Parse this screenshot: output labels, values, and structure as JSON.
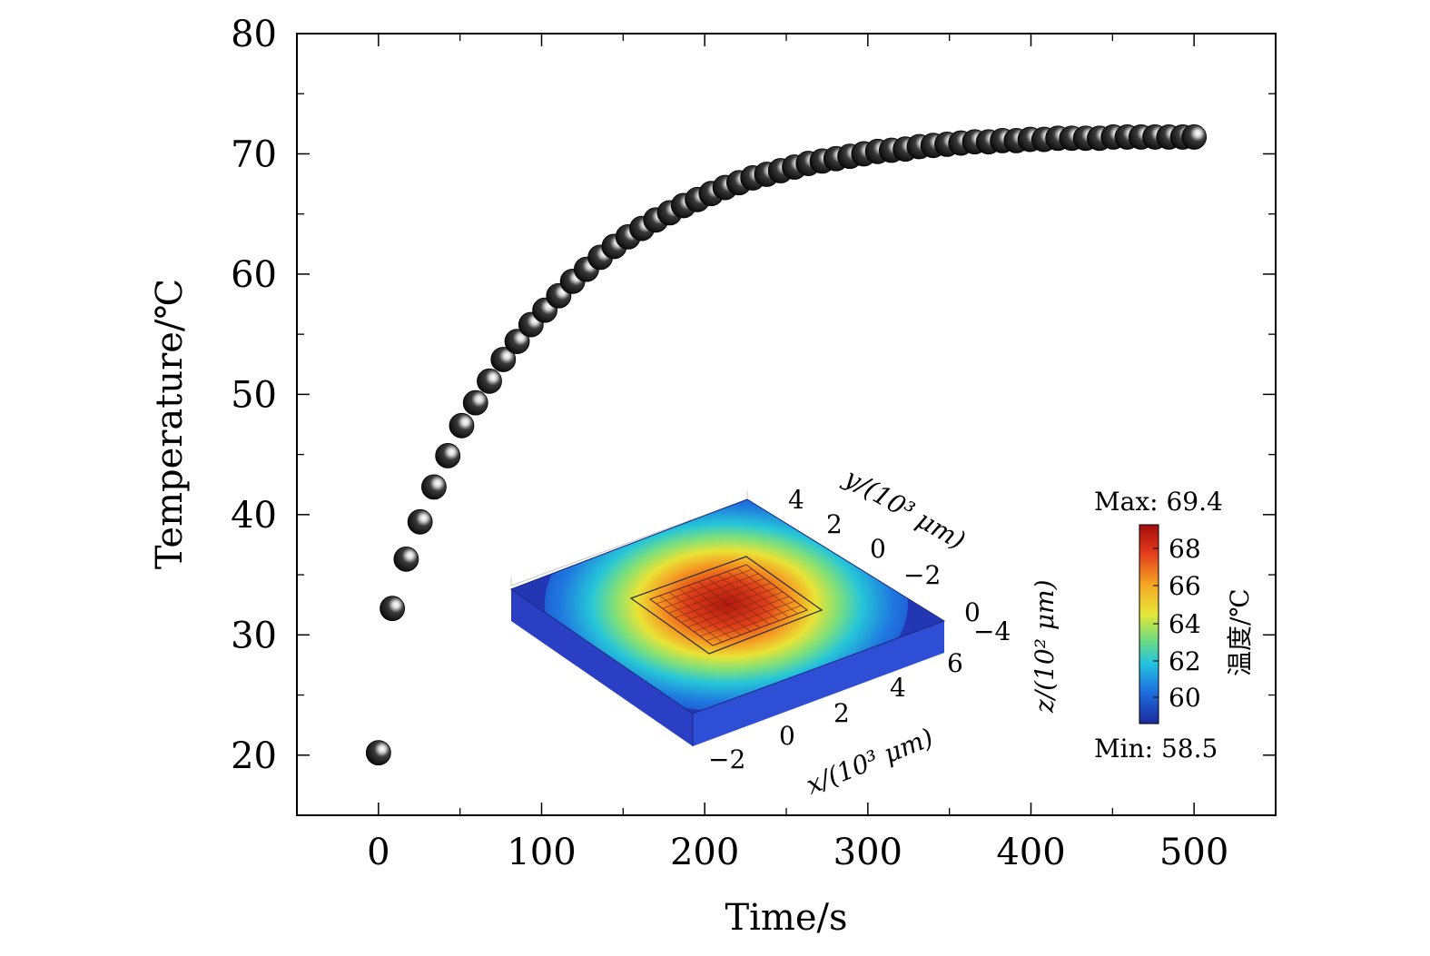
{
  "chart_data": {
    "type": "scatter",
    "title": "",
    "xlabel": "Time/s",
    "ylabel": "Temperature/℃",
    "xlim": [
      -50,
      550
    ],
    "ylim": [
      15,
      80
    ],
    "x_ticks": [
      0,
      100,
      200,
      300,
      400,
      500
    ],
    "x_tick_labels": [
      "0",
      "100",
      "200",
      "300",
      "400",
      "500"
    ],
    "y_ticks": [
      20,
      30,
      40,
      50,
      60,
      70,
      80
    ],
    "y_tick_labels": [
      "20",
      "30",
      "40",
      "50",
      "60",
      "70",
      "80"
    ],
    "grid": false,
    "legend": "none",
    "marker_style": "black-sphere",
    "series": [
      {
        "x": [
          0,
          8.5,
          17,
          25.5,
          34,
          42.5,
          51,
          59.5,
          68,
          76.5,
          85,
          93.5,
          102,
          110.5,
          119,
          127.5,
          136,
          144.5,
          153,
          161.5,
          170,
          178.5,
          187,
          195.5,
          204,
          212.5,
          221,
          229.5,
          238,
          246.5,
          255,
          263.5,
          272,
          280.5,
          289,
          297.5,
          306,
          314.5,
          323,
          331.5,
          340,
          348.5,
          357,
          365.5,
          374,
          382.5,
          391,
          399.5,
          408,
          416.5,
          425,
          433.5,
          442,
          450.5,
          459,
          467.5,
          476,
          484.5,
          493,
          500
        ],
        "y": [
          20.2,
          32.2,
          36.3,
          39.4,
          42.3,
          44.9,
          47.4,
          49.3,
          51.1,
          52.9,
          54.4,
          55.8,
          57.0,
          58.2,
          59.4,
          60.4,
          61.4,
          62.3,
          63.1,
          63.8,
          64.5,
          65.1,
          65.7,
          66.2,
          66.7,
          67.2,
          67.6,
          68.0,
          68.3,
          68.6,
          68.9,
          69.2,
          69.4,
          69.6,
          69.8,
          70.0,
          70.2,
          70.3,
          70.4,
          70.6,
          70.7,
          70.8,
          70.9,
          71.0,
          71.0,
          71.1,
          71.1,
          71.2,
          71.2,
          71.3,
          71.3,
          71.3,
          71.3,
          71.4,
          71.4,
          71.4,
          71.4,
          71.4,
          71.4,
          71.4
        ]
      }
    ]
  },
  "inset": {
    "colorbar_max": "Max: 69.4",
    "colorbar_min": "Min: 58.5",
    "colorbar_ticks": [
      "68",
      "66",
      "64",
      "62",
      "60"
    ],
    "colorbar_label": "温度/℃",
    "y_axis_label": "y/(10³ μm)",
    "x_axis_label": "x/(10³ μm)",
    "z_axis_label": "z/(10² μm)",
    "y_axis_ticks": [
      "4",
      "2",
      "0",
      "−2",
      "−4"
    ],
    "x_axis_ticks": [
      "6",
      "4",
      "2",
      "0",
      "−2"
    ],
    "z_axis_ticks": [
      "0"
    ]
  }
}
